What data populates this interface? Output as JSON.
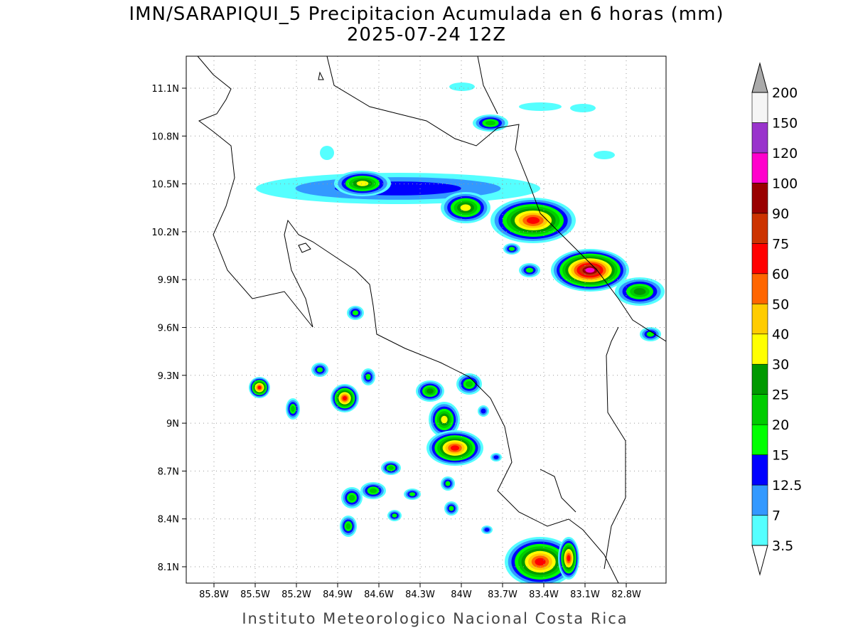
{
  "header": {
    "title": "IMN/SARAPIQUI_5 Precipitacion Acumulada en 6 horas (mm)",
    "subtitle": "2025-07-24 12Z"
  },
  "map": {
    "lon_ticks": [
      "85.8W",
      "85.5W",
      "85.2W",
      "84.9W",
      "84.6W",
      "84.3W",
      "84W",
      "83.7W",
      "83.4W",
      "83.1W",
      "82.8W"
    ],
    "lat_ticks": [
      "11.1N",
      "10.8N",
      "10.5N",
      "10.2N",
      "9.9N",
      "9.6N",
      "9.3N",
      "9N",
      "8.7N",
      "8.4N",
      "8.1N"
    ]
  },
  "colorbar": {
    "labels": [
      "3.5",
      "7",
      "12.5",
      "15",
      "20",
      "25",
      "30",
      "40",
      "50",
      "60",
      "75",
      "90",
      "100",
      "120",
      "150",
      "200"
    ],
    "colors": [
      "#55ffff",
      "#3399ff",
      "#0000ff",
      "#00ff00",
      "#00cc00",
      "#009900",
      "#ffff00",
      "#ffcc00",
      "#ff6600",
      "#ff0000",
      "#cc3300",
      "#990000",
      "#ff00cc",
      "#9933cc",
      "#f5f5f5"
    ],
    "over_color": "#aaaaaa"
  },
  "footer": "Instituto Meteorologico Nacional Costa Rica"
}
